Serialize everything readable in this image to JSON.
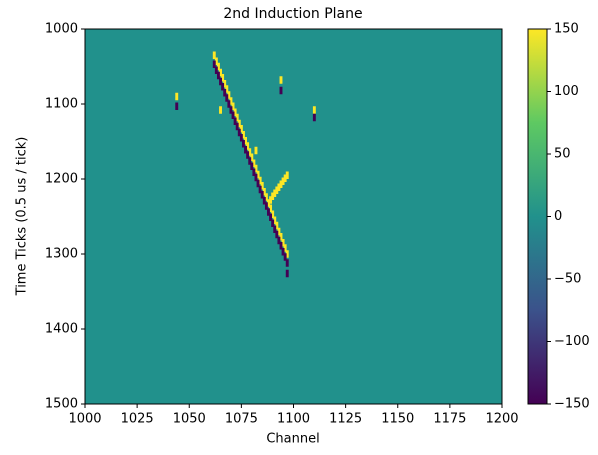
{
  "chart_data": {
    "type": "heatmap",
    "title": "2nd Induction Plane",
    "x_label": "Channel",
    "y_label": "Time Ticks (0.5 us / tick)",
    "colormap": "viridis",
    "xlim": [
      1000,
      1200
    ],
    "xticks": [
      1000,
      1025,
      1050,
      1075,
      1100,
      1125,
      1150,
      1175,
      1200
    ],
    "ylim": [
      1500,
      1000
    ],
    "yticks": [
      1000,
      1100,
      1200,
      1300,
      1400,
      1500
    ],
    "clim": [
      -150,
      150
    ],
    "cticks": [
      150,
      100,
      50,
      0,
      {
        "value": -50,
        "label": "−50"
      },
      {
        "value": -100,
        "label": "−100"
      },
      {
        "value": -150,
        "label": "−150"
      }
    ],
    "x": [
      1062,
      1063,
      1064,
      1065,
      1066,
      1067,
      1068,
      1069,
      1070,
      1071,
      1072,
      1073,
      1074,
      1075,
      1076,
      1077,
      1078,
      1079,
      1080,
      1081,
      1082,
      1083,
      1084,
      1085,
      1086,
      1087,
      1088,
      1089,
      1090,
      1091,
      1092,
      1093,
      1094,
      1095,
      1096,
      1097,
      1062,
      1063,
      1064,
      1065,
      1066,
      1067,
      1068,
      1069,
      1070,
      1071,
      1072,
      1073,
      1074,
      1075,
      1076,
      1077,
      1078,
      1079,
      1080,
      1081,
      1082,
      1083,
      1084,
      1085,
      1086,
      1087,
      1088,
      1089,
      1090,
      1091,
      1092,
      1093,
      1094,
      1095,
      1096,
      1097,
      1097,
      1089,
      1090,
      1091,
      1092,
      1093,
      1094,
      1095,
      1096,
      1097,
      1044,
      1044,
      1065,
      1094,
      1094,
      1110,
      1110,
      1082
    ],
    "y": [
      1035,
      1043,
      1050,
      1058,
      1065,
      1073,
      1080,
      1088,
      1096,
      1103,
      1111,
      1118,
      1126,
      1133,
      1141,
      1149,
      1156,
      1164,
      1171,
      1179,
      1186,
      1194,
      1202,
      1209,
      1217,
      1224,
      1232,
      1239,
      1247,
      1255,
      1262,
      1270,
      1277,
      1285,
      1292,
      1300,
      1047,
      1055,
      1062,
      1070,
      1077,
      1085,
      1092,
      1100,
      1108,
      1115,
      1123,
      1130,
      1138,
      1145,
      1153,
      1161,
      1168,
      1176,
      1183,
      1191,
      1198,
      1206,
      1214,
      1221,
      1229,
      1236,
      1244,
      1251,
      1259,
      1267,
      1274,
      1282,
      1289,
      1297,
      1304,
      1312,
      1326,
      1228,
      1223,
      1219,
      1215,
      1211,
      1207,
      1203,
      1199,
      1195,
      1090,
      1103,
      1108,
      1068,
      1082,
      1108,
      1118,
      1162
    ],
    "values": [
      150,
      150,
      150,
      150,
      150,
      150,
      150,
      150,
      150,
      150,
      150,
      150,
      150,
      150,
      150,
      150,
      150,
      150,
      150,
      150,
      150,
      150,
      150,
      150,
      150,
      150,
      150,
      150,
      150,
      150,
      150,
      150,
      150,
      150,
      150,
      150,
      -150,
      -150,
      -150,
      -150,
      -150,
      -150,
      -150,
      -150,
      -150,
      -150,
      -150,
      -150,
      -150,
      -150,
      -150,
      -150,
      -150,
      -150,
      -150,
      -150,
      -150,
      -150,
      -150,
      -150,
      -150,
      -150,
      -150,
      -150,
      -150,
      -150,
      -150,
      -150,
      -150,
      -150,
      -150,
      -150,
      -150,
      150,
      150,
      150,
      150,
      150,
      150,
      150,
      150,
      150,
      150,
      -150,
      150,
      150,
      -150,
      150,
      -150,
      150
    ]
  }
}
